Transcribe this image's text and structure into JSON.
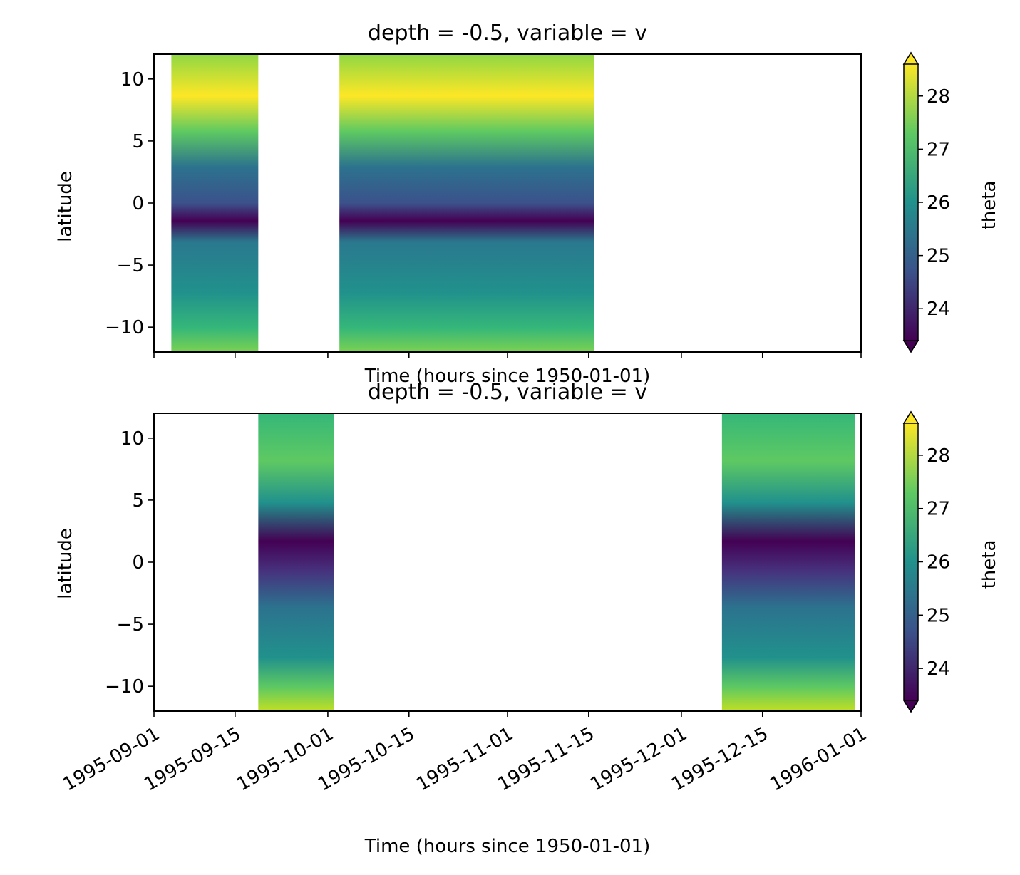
{
  "chart_data": [
    {
      "type": "heatmap",
      "title": "depth = -0.5, variable = v",
      "xlabel": "Time (hours since 1950-01-01)",
      "ylabel": "latitude",
      "x_tick_labels_visible": false,
      "xlim": [
        "1995-09-01",
        "1996-01-01"
      ],
      "ylim": [
        -12,
        12
      ],
      "yticks": [
        10,
        5,
        0,
        -5,
        -10
      ],
      "ytick_labels": [
        "10",
        "5",
        "0",
        "−5",
        "−10"
      ],
      "data_ranges": [
        {
          "start": "1995-09-04",
          "end": "1995-09-19"
        },
        {
          "start": "1995-10-03",
          "end": "1995-11-16"
        }
      ],
      "colorbar": {
        "label": "theta",
        "range": [
          23.4,
          28.6
        ],
        "ticks": [
          24,
          25,
          26,
          27,
          28
        ],
        "tick_labels": [
          "24",
          "25",
          "26",
          "27",
          "28"
        ],
        "extend": "both",
        "colormap": "viridis"
      }
    },
    {
      "type": "heatmap",
      "title": "depth = -0.5, variable = v",
      "xlabel": "Time (hours since 1950-01-01)",
      "ylabel": "latitude",
      "xlim": [
        "1995-09-01",
        "1996-01-01"
      ],
      "ylim": [
        -12,
        12
      ],
      "yticks": [
        10,
        5,
        0,
        -5,
        -10
      ],
      "ytick_labels": [
        "10",
        "5",
        "0",
        "−5",
        "−10"
      ],
      "data_ranges": [
        {
          "start": "1995-09-19",
          "end": "1995-10-02"
        },
        {
          "start": "1995-12-08",
          "end": "1995-12-31"
        }
      ],
      "colorbar": {
        "label": "theta",
        "range": [
          23.4,
          28.6
        ],
        "ticks": [
          24,
          25,
          26,
          27,
          28
        ],
        "tick_labels": [
          "24",
          "25",
          "26",
          "27",
          "28"
        ],
        "extend": "both",
        "colormap": "viridis"
      }
    }
  ],
  "x_ticks": [
    "1995-09-01",
    "1995-09-15",
    "1995-10-01",
    "1995-10-15",
    "1995-11-01",
    "1995-11-15",
    "1995-12-01",
    "1995-12-15",
    "1996-01-01"
  ],
  "x_tick_labels": [
    "1995-09-01",
    "1995-09-15",
    "1995-10-01",
    "1995-10-15",
    "1995-11-01",
    "1995-11-15",
    "1995-12-01",
    "1995-12-15",
    "1996-01-01"
  ],
  "colors": {
    "viridis": [
      "#440154",
      "#3b528b",
      "#21918c",
      "#5ec962",
      "#fde725"
    ]
  }
}
